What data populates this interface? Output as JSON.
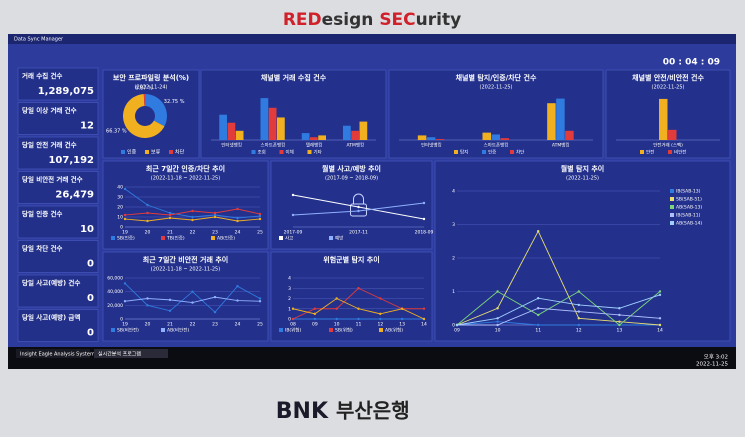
{
  "wall": {
    "brand": [
      "RED",
      "esign ",
      "SEC",
      "urity"
    ],
    "bank_logo": "BNK",
    "bank_name": "부산은행"
  },
  "window_title": "Data Sync Manager",
  "clock": "00 : 04 : 09",
  "kpis": [
    {
      "label": "거래 수집 건수",
      "value": "1,289,075"
    },
    {
      "label": "당일 이상 거래 건수",
      "value": "12"
    },
    {
      "label": "당일 안전 거래 건수",
      "value": "107,192"
    },
    {
      "label": "당일 비안전 거래 건수",
      "value": "26,479"
    },
    {
      "label": "당일 인증 건수",
      "value": "10"
    },
    {
      "label": "당일 차단 건수",
      "value": "0"
    },
    {
      "label": "당일 사고(예방) 건수",
      "value": "0"
    },
    {
      "label": "당일 사고(예방) 금액",
      "value": "0"
    }
  ],
  "panels": [
    {
      "title": "보안 프로파일링 분석(%)",
      "subtitle": "(2022-11-24)",
      "chart": {
        "type": "donut",
        "series": [
          {
            "name": "인증",
            "color": "#2f7be0",
            "value": 32.75,
            "value_label": "32.75 %"
          },
          {
            "name": "보류",
            "color": "#f0b020",
            "value": 66.37,
            "value_label": "66.37 %"
          },
          {
            "name": "차단",
            "color": "#e23b3b",
            "value": 0.87,
            "value_label": "0.87 %"
          }
        ]
      }
    },
    {
      "title": "채널별 거래 수집 건수",
      "chart": {
        "type": "bar",
        "categories": [
          "인터넷뱅킹",
          "스마트폰뱅킹",
          "텔레뱅킹",
          "ATM뱅킹"
        ],
        "ylim": [
          0,
          200000
        ],
        "series": [
          {
            "name": "조회",
            "color": "#2f7be0",
            "values": [
              110000,
              182139,
              30000,
              62000
            ]
          },
          {
            "name": "이체",
            "color": "#e23b3b",
            "values": [
              75000,
              140000,
              12000,
              40000
            ]
          },
          {
            "name": "기타",
            "color": "#f0b020",
            "values": [
              40000,
              98000,
              20000,
              80000
            ]
          }
        ]
      }
    },
    {
      "title": "채널별 탐지/인증/차단 건수",
      "subtitle": "(2022-11-25)",
      "chart": {
        "type": "bar",
        "categories": [
          "인터넷뱅킹",
          "스마트폰뱅킹",
          "ATM뱅킹"
        ],
        "ylim": [
          0,
          50
        ],
        "series": [
          {
            "name": "탐지",
            "color": "#f0b020",
            "values": [
              5,
              8,
              40
            ]
          },
          {
            "name": "인증",
            "color": "#2f7be0",
            "values": [
              3,
              6,
              45
            ]
          },
          {
            "name": "차단",
            "color": "#e23b3b",
            "values": [
              1,
              2,
              10
            ]
          }
        ]
      }
    },
    {
      "title": "채널별 안전/비안전 건수",
      "subtitle": "(2022-11-25)",
      "chart": {
        "type": "bar",
        "categories": [
          "안전거래 (스펙)"
        ],
        "ylim": [
          0,
          120000
        ],
        "series": [
          {
            "name": "안전",
            "color": "#f0b020",
            "values": [
              107192
            ]
          },
          {
            "name": "비안전",
            "color": "#e23b3b",
            "values": [
              26479
            ]
          }
        ]
      }
    },
    {
      "title": "최근 7일간 인증/차단 추이",
      "subtitle": "(2022-11-18 ~ 2022-11-25)",
      "chart": {
        "type": "line",
        "categories": [
          "19",
          "20",
          "21",
          "22",
          "23",
          "24",
          "25"
        ],
        "ylim": [
          0,
          40
        ],
        "yticks": [
          0,
          10,
          20,
          30,
          40
        ],
        "series": [
          {
            "name": "SB(인증)",
            "color": "#2f7be0",
            "values": [
              38,
              22,
              14,
              10,
              12,
              9,
              11
            ]
          },
          {
            "name": "TB(인증)",
            "color": "#e23b3b",
            "values": [
              12,
              14,
              12,
              16,
              14,
              18,
              13
            ]
          },
          {
            "name": "AB(인증)",
            "color": "#f0b020",
            "values": [
              8,
              6,
              9,
              7,
              10,
              6,
              8
            ]
          }
        ]
      }
    },
    {
      "title": "월별 사고/예방 추이",
      "subtitle": "(2017-09 ~ 2018-09)",
      "chart": {
        "type": "line",
        "lock": true,
        "categories": [
          "2017-09",
          "2017-11",
          "2018-09"
        ],
        "ylim": [
          0,
          10
        ],
        "series": [
          {
            "name": "사고",
            "color": "#ffffff",
            "values": [
              8,
              5,
              2
            ]
          },
          {
            "name": "예방",
            "color": "#8fb0ff",
            "values": [
              3,
              4,
              6
            ]
          }
        ]
      }
    },
    {
      "title": "월별 탐지 추이",
      "subtitle": "(2022-11-25)",
      "chart": {
        "type": "line",
        "legend": "right",
        "categories": [
          "09",
          "10",
          "11",
          "12",
          "13",
          "14"
        ],
        "ylim": [
          0,
          4
        ],
        "yticks": [
          0,
          1,
          2,
          3,
          4
        ],
        "series": [
          {
            "name": "IB(SAB-13)",
            "color": "#2f7be0",
            "values": [
              0,
              0.1,
              0,
              0,
              0,
              0
            ]
          },
          {
            "name": "SB(SAB-51)",
            "color": "#e8e070",
            "values": [
              0,
              0.5,
              2.8,
              0.2,
              0.1,
              0
            ]
          },
          {
            "name": "AB(SAB-13)",
            "color": "#7ad67a",
            "values": [
              0,
              1,
              0.3,
              1,
              0,
              1
            ]
          },
          {
            "name": "IB(SAB-11)",
            "color": "#b0c0ff",
            "values": [
              0,
              0,
              0.5,
              0.4,
              0.3,
              0.2
            ]
          },
          {
            "name": "AB(SAB-14)",
            "color": "#9fd0ff",
            "values": [
              0,
              0.2,
              0.8,
              0.6,
              0.5,
              0.9
            ]
          }
        ]
      }
    },
    {
      "title": "최근 7일간 비안전 거래 추이",
      "subtitle": "(2022-11-18 ~ 2022-11-25)",
      "chart": {
        "type": "line",
        "categories": [
          "19",
          "20",
          "21",
          "22",
          "23",
          "24",
          "25"
        ],
        "ylim": [
          0,
          60000
        ],
        "yticks": [
          0,
          {
            "value": 20000,
            "label": "20,000"
          },
          {
            "value": 40000,
            "label": "40,000"
          },
          {
            "value": 60000,
            "label": "60,000"
          }
        ],
        "series": [
          {
            "name": "SB(비안전)",
            "color": "#2f7be0",
            "values": [
              52000,
              20000,
              12000,
              40000,
              10000,
              48000,
              30000
            ]
          },
          {
            "name": "AB(비안전)",
            "color": "#8fb0ff",
            "values": [
              26000,
              30000,
              28000,
              24000,
              32000,
              27000,
              26000
            ]
          }
        ]
      }
    },
    {
      "title": "위험군별 탐지 추이",
      "chart": {
        "type": "line",
        "categories": [
          "08",
          "09",
          "10",
          "11",
          "12",
          "13",
          "14"
        ],
        "ylim": [
          0,
          4
        ],
        "yticks": [
          0,
          1,
          2,
          3,
          4
        ],
        "series": [
          {
            "name": "IB(위험)",
            "color": "#2f7be0",
            "values": [
              0,
              0,
              0,
              0,
              0,
              0,
              0
            ]
          },
          {
            "name": "SB(위험)",
            "color": "#e23b3b",
            "values": [
              0,
              1,
              1,
              3,
              2,
              1,
              1
            ]
          },
          {
            "name": "AB(위험)",
            "color": "#f0b020",
            "values": [
              1,
              0.5,
              2,
              1,
              0.5,
              1,
              0
            ]
          }
        ]
      }
    }
  ],
  "taskbar": {
    "items": [
      "Insight Eagle Analysis System",
      "실시간분석 프로그램"
    ],
    "time": "오후 3:02",
    "date": "2022-11-25"
  }
}
